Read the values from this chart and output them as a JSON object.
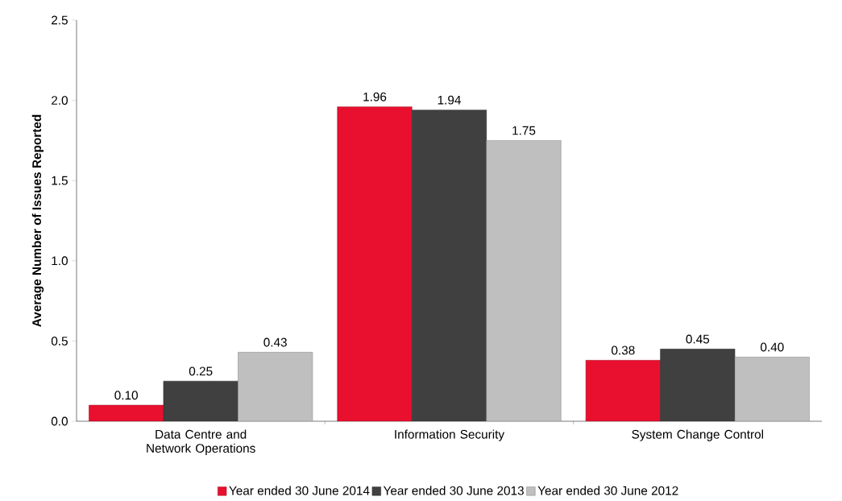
{
  "chart_data": {
    "type": "bar",
    "ylabel": "Average Number of Issues Reported",
    "categories": [
      "Data Centre and Network Operations",
      "Information Security",
      "System Change Control"
    ],
    "series": [
      {
        "name": "Year ended 30 June 2014",
        "color": "#e8102e",
        "values": [
          0.1,
          1.96,
          0.38
        ],
        "value_labels": [
          "0.10",
          "1.96",
          "0.38"
        ]
      },
      {
        "name": "Year ended 30 June 2013",
        "color": "#404040",
        "values": [
          0.25,
          1.94,
          0.45
        ],
        "value_labels": [
          "0.25",
          "1.94",
          "0.45"
        ]
      },
      {
        "name": "Year ended 30 June 2012",
        "color": "#bfbfbf",
        "values": [
          0.43,
          1.75,
          0.4
        ],
        "value_labels": [
          "0.43",
          "1.75",
          "0.40"
        ]
      }
    ],
    "ylim": [
      0,
      2.5
    ],
    "yticks": [
      "0.0",
      "0.5",
      "1.0",
      "1.5",
      "2.0",
      "2.5"
    ],
    "grid": false,
    "legend": "bottom"
  }
}
